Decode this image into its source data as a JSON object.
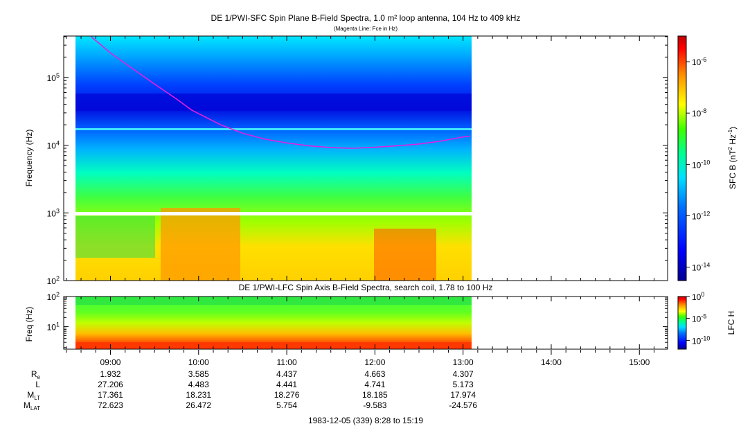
{
  "chart_data": [
    {
      "type": "heatmap",
      "title": "DE 1/PWI-SFC  Spin Plane B-Field Spectra, 1.0 m² loop antenna, 104 Hz to 409 kHz",
      "subtitle": "(Magenta Line: Fce in Hz)",
      "ylabel": "Frequency (Hz)",
      "yscale": "log",
      "ylim": [
        100,
        409000
      ],
      "y_ticks": [
        "10^2",
        "10^3",
        "10^4",
        "10^5"
      ],
      "x_range_hours": [
        8.47,
        15.32
      ],
      "data_x_range_hours": [
        8.62,
        13.08
      ],
      "colorbar": {
        "label": "SFC B (nT^2 Hz^-1)",
        "scale": "log",
        "range": [
          3e-15,
          1e-05
        ],
        "ticks": [
          {
            "value": 1e-06,
            "label": "10^-6"
          },
          {
            "value": 1e-08,
            "label": "10^-8"
          },
          {
            "value": 1e-10,
            "label": "10^-10"
          },
          {
            "value": 1e-12,
            "label": "10^-12"
          },
          {
            "value": 1e-14,
            "label": "10^-14"
          }
        ]
      },
      "fce_line": {
        "name": "Fce in Hz",
        "color": "#e020e0",
        "x_hours": [
          8.78,
          9.0,
          9.25,
          9.5,
          9.75,
          9.92,
          10.25,
          10.5,
          10.75,
          11.0,
          11.25,
          11.5,
          11.75,
          12.0,
          12.25,
          12.5,
          12.75,
          13.0,
          13.08
        ],
        "y_hz": [
          400000,
          230000,
          135000,
          80000,
          48000,
          33000,
          20000,
          15000,
          12300,
          10800,
          9800,
          9200,
          9000,
          9300,
          9800,
          10400,
          11500,
          13200,
          13600
        ]
      }
    },
    {
      "type": "heatmap",
      "title": "DE 1/PWI-LFC  Spin Axis B-Field Spectra, search coil, 1.78 to 100 Hz",
      "ylabel": "Freq (Hz)",
      "yscale": "log",
      "ylim": [
        1.78,
        100
      ],
      "y_ticks": [
        "10^1",
        "10^2"
      ],
      "colorbar": {
        "label": "LFC H",
        "scale": "log",
        "range": [
          1e-12,
          1
        ],
        "ticks": [
          {
            "value": 1,
            "label": "10^0"
          },
          {
            "value": 1e-05,
            "label": "10^-5"
          },
          {
            "value": 1e-10,
            "label": "10^-10"
          }
        ]
      }
    }
  ],
  "xaxis": {
    "tick_labels": [
      "09:00",
      "10:00",
      "11:00",
      "12:00",
      "13:00",
      "14:00",
      "15:00"
    ],
    "tick_hours": [
      9,
      10,
      11,
      12,
      13,
      14,
      15
    ]
  },
  "ephemeris": {
    "rows": [
      {
        "name": "R",
        "sub": "e",
        "values": [
          "1.932",
          "3.585",
          "4.437",
          "4.663",
          "4.307"
        ]
      },
      {
        "name": "L",
        "sub": "",
        "values": [
          "27.206",
          "4.483",
          "4.441",
          "4.741",
          "5.173"
        ]
      },
      {
        "name": "M",
        "sub": "LT",
        "values": [
          "17.361",
          "18.231",
          "18.276",
          "18.185",
          "17.974"
        ]
      },
      {
        "name": "M",
        "sub": "LAT",
        "values": [
          "72.623",
          "26.472",
          "5.754",
          "-9.583",
          "-24.576"
        ]
      }
    ]
  },
  "footer": "1983-12-05 (339) 8:28 to 15:19"
}
